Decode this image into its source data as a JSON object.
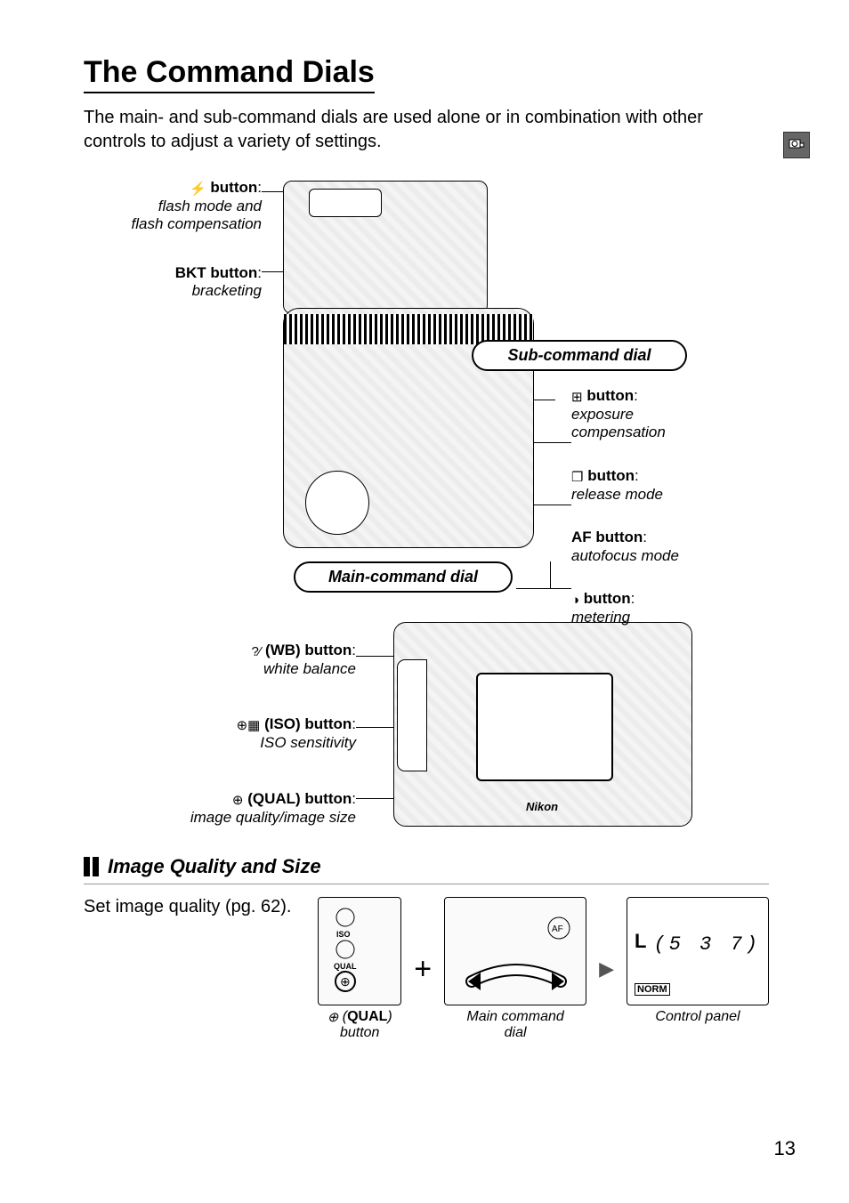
{
  "page_number": "13",
  "title": "The Command Dials",
  "intro": "The main- and sub-command dials are used alone or in combination with other controls to adjust a variety of settings.",
  "pills": {
    "sub_command": "Sub-command dial",
    "main_command": "Main-command dial"
  },
  "callouts_left_top": [
    {
      "icon": "⚡",
      "key": "button",
      "desc_lines": [
        "flash mode and",
        "flash compensation"
      ]
    },
    {
      "prefix": "BKT",
      "key": "button",
      "desc_lines": [
        "bracketing"
      ]
    }
  ],
  "callouts_right_mid": [
    {
      "icon": "⊞",
      "key": "button",
      "desc_lines": [
        "exposure",
        "compensation"
      ]
    },
    {
      "icon": "❐",
      "key": "button",
      "desc_lines": [
        "release mode"
      ]
    },
    {
      "prefix": "AF",
      "key": "button",
      "desc_lines": [
        "autofocus mode"
      ]
    },
    {
      "icon": "◑",
      "key": "button",
      "desc_lines": [
        "metering"
      ]
    }
  ],
  "callouts_left_bottom": [
    {
      "icon": "?⁄",
      "paren": "(WB)",
      "key": "button",
      "desc_lines": [
        "white balance"
      ]
    },
    {
      "icon": "⊕▦",
      "paren": "(ISO)",
      "key": "button",
      "desc_lines": [
        "ISO sensitivity"
      ]
    },
    {
      "icon": "⊕",
      "paren": "(QUAL)",
      "key": "button",
      "desc_lines": [
        "image quality/image size"
      ]
    }
  ],
  "section": {
    "heading": "Image Quality and Size",
    "body": "Set image quality (pg. 62).",
    "step1_icon": "⊕",
    "step1_bold": "QUAL",
    "step1_suffix": ") button",
    "step1_prefix": "(",
    "plus": "+",
    "step2_line1": "Main command",
    "step2_line2": "dial",
    "step3": "Control panel",
    "panel_value": "(5 3 7)",
    "panel_norm": "NORM",
    "panel_l": "L"
  },
  "colors": {
    "text": "#000000",
    "rule": "#999999",
    "tab": "#666666"
  }
}
